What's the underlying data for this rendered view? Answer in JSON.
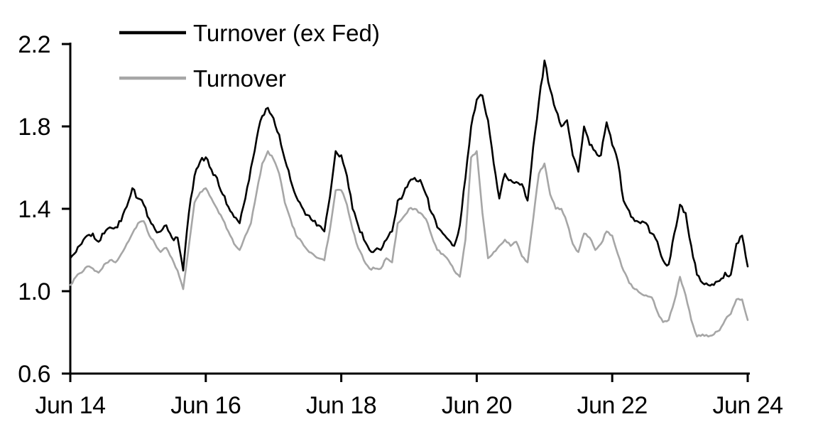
{
  "chart_data": {
    "type": "line",
    "title": "",
    "legend_position": "top-left",
    "grid": false,
    "background": "#ffffff",
    "axis_color": "#000000",
    "x_axis": {
      "tick_labels": [
        "Jun 14",
        "Jun 16",
        "Jun 18",
        "Jun 20",
        "Jun 22",
        "Jun 24"
      ],
      "range_note": "monthly samples, Jun 2014 to Jun 2024 (121 points per series)"
    },
    "y_axis": {
      "tick_labels": [
        "2.2",
        "1.8",
        "1.4",
        "1.0",
        "0.6"
      ],
      "tick_values": [
        2.2,
        1.8,
        1.4,
        1.0,
        0.6
      ],
      "min": 0.6,
      "max": 2.2
    },
    "series": [
      {
        "name": "Turnover (ex Fed)",
        "color": "#000000",
        "values": [
          1.16,
          1.19,
          1.23,
          1.27,
          1.28,
          1.24,
          1.28,
          1.31,
          1.31,
          1.34,
          1.41,
          1.5,
          1.45,
          1.42,
          1.35,
          1.3,
          1.29,
          1.32,
          1.26,
          1.26,
          1.1,
          1.38,
          1.56,
          1.63,
          1.65,
          1.59,
          1.55,
          1.47,
          1.41,
          1.36,
          1.33,
          1.45,
          1.6,
          1.74,
          1.85,
          1.89,
          1.84,
          1.76,
          1.64,
          1.54,
          1.46,
          1.41,
          1.37,
          1.34,
          1.32,
          1.29,
          1.46,
          1.68,
          1.66,
          1.56,
          1.4,
          1.32,
          1.25,
          1.2,
          1.2,
          1.2,
          1.25,
          1.29,
          1.44,
          1.47,
          1.53,
          1.55,
          1.54,
          1.47,
          1.38,
          1.31,
          1.28,
          1.25,
          1.22,
          1.32,
          1.55,
          1.8,
          1.93,
          1.95,
          1.83,
          1.62,
          1.45,
          1.57,
          1.54,
          1.53,
          1.52,
          1.44,
          1.7,
          1.92,
          2.12,
          1.98,
          1.88,
          1.8,
          1.83,
          1.66,
          1.58,
          1.8,
          1.71,
          1.68,
          1.66,
          1.82,
          1.71,
          1.63,
          1.44,
          1.39,
          1.34,
          1.33,
          1.33,
          1.28,
          1.24,
          1.15,
          1.13,
          1.28,
          1.42,
          1.38,
          1.22,
          1.08,
          1.04,
          1.03,
          1.03,
          1.05,
          1.09,
          1.08,
          1.23,
          1.27,
          1.12
        ]
      },
      {
        "name": "Turnover",
        "color": "#a6a6a6",
        "values": [
          1.03,
          1.07,
          1.09,
          1.12,
          1.11,
          1.09,
          1.13,
          1.15,
          1.14,
          1.18,
          1.23,
          1.28,
          1.33,
          1.34,
          1.27,
          1.23,
          1.19,
          1.21,
          1.16,
          1.1,
          1.01,
          1.22,
          1.43,
          1.48,
          1.5,
          1.45,
          1.4,
          1.35,
          1.29,
          1.23,
          1.2,
          1.27,
          1.33,
          1.48,
          1.62,
          1.68,
          1.64,
          1.57,
          1.43,
          1.35,
          1.27,
          1.24,
          1.2,
          1.18,
          1.16,
          1.15,
          1.3,
          1.49,
          1.49,
          1.42,
          1.3,
          1.21,
          1.15,
          1.11,
          1.11,
          1.11,
          1.16,
          1.14,
          1.33,
          1.36,
          1.4,
          1.4,
          1.38,
          1.35,
          1.27,
          1.2,
          1.18,
          1.15,
          1.1,
          1.07,
          1.25,
          1.65,
          1.68,
          1.38,
          1.16,
          1.19,
          1.22,
          1.25,
          1.22,
          1.24,
          1.17,
          1.14,
          1.35,
          1.57,
          1.62,
          1.47,
          1.4,
          1.4,
          1.33,
          1.23,
          1.19,
          1.28,
          1.26,
          1.2,
          1.23,
          1.29,
          1.27,
          1.18,
          1.1,
          1.04,
          1.01,
          0.99,
          0.98,
          0.97,
          0.9,
          0.85,
          0.86,
          0.95,
          1.07,
          0.98,
          0.86,
          0.78,
          0.79,
          0.78,
          0.79,
          0.81,
          0.86,
          0.89,
          0.96,
          0.96,
          0.86
        ]
      }
    ]
  }
}
